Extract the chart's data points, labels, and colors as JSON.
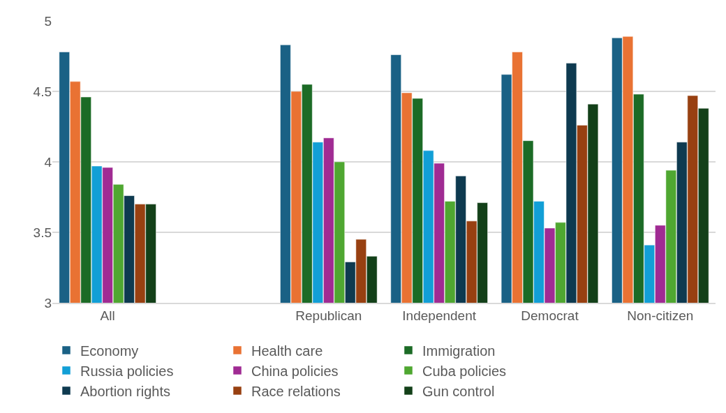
{
  "chart_data": {
    "type": "bar",
    "categories": [
      "All",
      null,
      "Republican",
      "Independent",
      "Democrat",
      "Non-citizen"
    ],
    "ylim": [
      3,
      5
    ],
    "yticks": [
      3,
      3.5,
      4,
      4.5,
      5
    ],
    "grid": "y",
    "legend": "bottom",
    "series": [
      {
        "name": "Economy",
        "color": "#1a6185",
        "values": [
          4.78,
          null,
          4.83,
          4.76,
          4.62,
          4.88
        ]
      },
      {
        "name": "Health care",
        "color": "#e97233",
        "values": [
          4.57,
          null,
          4.5,
          4.49,
          4.78,
          4.89
        ]
      },
      {
        "name": "Immigration",
        "color": "#1c6b26",
        "values": [
          4.46,
          null,
          4.55,
          4.45,
          4.15,
          4.48
        ]
      },
      {
        "name": "Russia policies",
        "color": "#129fd6",
        "values": [
          3.97,
          null,
          4.14,
          4.08,
          3.72,
          3.41
        ]
      },
      {
        "name": "China policies",
        "color": "#a02b93",
        "values": [
          3.96,
          null,
          4.17,
          3.99,
          3.53,
          3.55
        ]
      },
      {
        "name": "Cuba policies",
        "color": "#4fa731",
        "values": [
          3.84,
          null,
          4.0,
          3.72,
          3.57,
          3.94
        ]
      },
      {
        "name": "Abortion rights",
        "color": "#0e3a50",
        "values": [
          3.76,
          null,
          3.29,
          3.9,
          4.7,
          4.14
        ]
      },
      {
        "name": "Race relations",
        "color": "#984011",
        "values": [
          3.7,
          null,
          3.45,
          3.58,
          4.26,
          4.47
        ]
      },
      {
        "name": "Gun control",
        "color": "#134019",
        "values": [
          3.7,
          null,
          3.33,
          3.71,
          4.41,
          4.38
        ]
      }
    ]
  }
}
